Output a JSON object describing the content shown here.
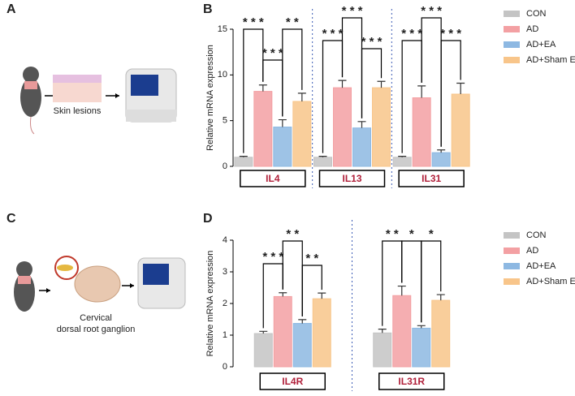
{
  "panel_labels": [
    "A",
    "B",
    "C",
    "D"
  ],
  "schematic_labels": [
    "Skin lesions",
    "Cervical",
    "dorsal root ganglion"
  ],
  "chart_data": [
    {
      "type": "bar",
      "ylabel": "Relative mRNA expression",
      "categories": [
        "IL4",
        "IL13",
        "IL31"
      ],
      "series": [
        {
          "name": "CON",
          "color": "#c4c4c4",
          "values": [
            1.0,
            1.0,
            1.0
          ],
          "errors": [
            0.1,
            0.1,
            0.1
          ]
        },
        {
          "name": "AD",
          "color": "#f3a0a3",
          "values": [
            8.2,
            8.6,
            7.5
          ],
          "errors": [
            0.7,
            0.8,
            1.3
          ]
        },
        {
          "name": "AD+EA",
          "color": "#8db8e2",
          "values": [
            4.3,
            4.2,
            1.5
          ],
          "errors": [
            0.8,
            0.7,
            0.3
          ]
        },
        {
          "name": "AD+Sham EA",
          "color": "#f8c58a",
          "values": [
            7.1,
            8.6,
            7.9
          ],
          "errors": [
            0.9,
            0.7,
            1.2
          ]
        }
      ],
      "ylim": [
        0,
        15
      ],
      "yticks": [
        0,
        5,
        10,
        15
      ],
      "annotations": [
        "* * *",
        "* *",
        "* * *",
        "* * *",
        "* * *",
        "* * *",
        "* * *",
        "* * *",
        "* * *"
      ]
    },
    {
      "type": "bar",
      "ylabel": "Relative mRNA expression",
      "categories": [
        "IL4R",
        "IL31R"
      ],
      "series": [
        {
          "name": "CON",
          "color": "#c4c4c4",
          "values": [
            1.05,
            1.07
          ],
          "errors": [
            0.07,
            0.12
          ]
        },
        {
          "name": "AD",
          "color": "#f3a0a3",
          "values": [
            2.22,
            2.25
          ],
          "errors": [
            0.12,
            0.3
          ]
        },
        {
          "name": "AD+EA",
          "color": "#8db8e2",
          "values": [
            1.37,
            1.22
          ],
          "errors": [
            0.12,
            0.08
          ]
        },
        {
          "name": "AD+Sham EA",
          "color": "#f8c58a",
          "values": [
            2.15,
            2.1
          ],
          "errors": [
            0.18,
            0.18
          ]
        }
      ],
      "ylim": [
        0,
        4
      ],
      "yticks": [
        0,
        1,
        2,
        3,
        4
      ],
      "annotations": [
        "* * *",
        "* *",
        "* *",
        "* *",
        "*",
        "*"
      ]
    }
  ]
}
